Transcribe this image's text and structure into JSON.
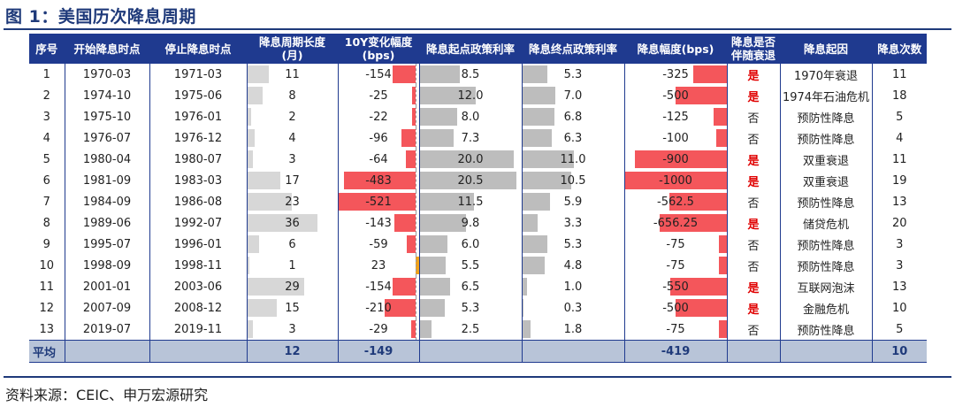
{
  "figure_title": "图 1：美国历次降息周期",
  "source": "资料来源：CEIC、申万宏源研究",
  "columns": {
    "seq": "序号",
    "start": "开始降息时点",
    "end": "停止降息时点",
    "length_l1": "降息周期长度",
    "length_l2": "(月)",
    "y10_l1": "10Y变化幅度",
    "y10_l2": "(bps)",
    "start_rate": "降息起点政策利率",
    "end_rate": "降息终点政策利率",
    "cut": "降息幅度(bps)",
    "recession_l1": "降息是否",
    "recession_l2": "伴随衰退",
    "reason": "降息起因",
    "count": "降息次数"
  },
  "colors": {
    "header_bg": "#1f3a8f",
    "negative_bar": "#f4565b",
    "positive_bar": "#f0a21c",
    "gray_bar": "#bdbdbd",
    "recession_yes": "#e00000"
  },
  "rows": [
    {
      "seq": "1",
      "start": "1970-03",
      "end": "1971-03",
      "length": "11",
      "y10": "-154",
      "start_rate": "8.5",
      "end_rate": "5.3",
      "cut": "-325",
      "recession": "是",
      "reason": "1970年衰退",
      "count": "11"
    },
    {
      "seq": "2",
      "start": "1974-10",
      "end": "1975-06",
      "length": "8",
      "y10": "-25",
      "start_rate": "12.0",
      "end_rate": "7.0",
      "cut": "-500",
      "recession": "是",
      "reason": "1974年石油危机",
      "count": "18"
    },
    {
      "seq": "3",
      "start": "1975-10",
      "end": "1976-01",
      "length": "2",
      "y10": "-22",
      "start_rate": "8.0",
      "end_rate": "6.8",
      "cut": "-125",
      "recession": "否",
      "reason": "预防性降息",
      "count": "5"
    },
    {
      "seq": "4",
      "start": "1976-07",
      "end": "1976-12",
      "length": "4",
      "y10": "-96",
      "start_rate": "7.3",
      "end_rate": "6.3",
      "cut": "-100",
      "recession": "否",
      "reason": "预防性降息",
      "count": "4"
    },
    {
      "seq": "5",
      "start": "1980-04",
      "end": "1980-07",
      "length": "3",
      "y10": "-64",
      "start_rate": "20.0",
      "end_rate": "11.0",
      "cut": "-900",
      "recession": "是",
      "reason": "双重衰退",
      "count": "11"
    },
    {
      "seq": "6",
      "start": "1981-09",
      "end": "1983-03",
      "length": "17",
      "y10": "-483",
      "start_rate": "20.5",
      "end_rate": "10.5",
      "cut": "-1000",
      "recession": "是",
      "reason": "双重衰退",
      "count": "19"
    },
    {
      "seq": "7",
      "start": "1984-09",
      "end": "1986-08",
      "length": "23",
      "y10": "-521",
      "start_rate": "11.5",
      "end_rate": "5.9",
      "cut": "-562.5",
      "recession": "否",
      "reason": "预防性降息",
      "count": "13"
    },
    {
      "seq": "8",
      "start": "1989-06",
      "end": "1992-07",
      "length": "36",
      "y10": "-143",
      "start_rate": "9.8",
      "end_rate": "3.3",
      "cut": "-656.25",
      "recession": "是",
      "reason": "储贷危机",
      "count": "20"
    },
    {
      "seq": "9",
      "start": "1995-07",
      "end": "1996-01",
      "length": "6",
      "y10": "-59",
      "start_rate": "6.0",
      "end_rate": "5.3",
      "cut": "-75",
      "recession": "否",
      "reason": "预防性降息",
      "count": "3"
    },
    {
      "seq": "10",
      "start": "1998-09",
      "end": "1998-11",
      "length": "1",
      "y10": "23",
      "start_rate": "5.5",
      "end_rate": "4.8",
      "cut": "-75",
      "recession": "否",
      "reason": "预防性降息",
      "count": "3"
    },
    {
      "seq": "11",
      "start": "2001-01",
      "end": "2003-06",
      "length": "29",
      "y10": "-154",
      "start_rate": "6.5",
      "end_rate": "1.0",
      "cut": "-550",
      "recession": "是",
      "reason": "互联网泡沫",
      "count": "13"
    },
    {
      "seq": "12",
      "start": "2007-09",
      "end": "2008-12",
      "length": "15",
      "y10": "-210",
      "start_rate": "5.3",
      "end_rate": "0.3",
      "cut": "-500",
      "recession": "是",
      "reason": "金融危机",
      "count": "10"
    },
    {
      "seq": "13",
      "start": "2019-07",
      "end": "2019-11",
      "length": "3",
      "y10": "-29",
      "start_rate": "2.5",
      "end_rate": "1.8",
      "cut": "-75",
      "recession": "否",
      "reason": "预防性降息",
      "count": "5"
    }
  ],
  "average": {
    "label": "平均",
    "length": "12",
    "y10": "-149",
    "cut": "-419",
    "count": "10"
  }
}
